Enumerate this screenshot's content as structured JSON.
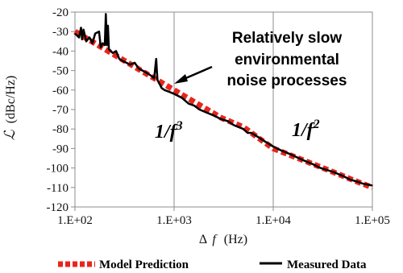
{
  "chart_data": {
    "type": "line",
    "xscale": "log",
    "xlim": [
      100,
      100000
    ],
    "ylim": [
      -120,
      -20
    ],
    "x_ticks": [
      100,
      1000,
      10000,
      100000
    ],
    "x_tick_labels": [
      "1.E+02",
      "1.E+03",
      "1.E+04",
      "1.E+05"
    ],
    "y_ticks": [
      -20,
      -30,
      -40,
      -50,
      -60,
      -70,
      -80,
      -90,
      -100,
      -110,
      -120
    ],
    "y_tick_labels": [
      "-20",
      "-30",
      "-40",
      "-50",
      "-60",
      "-70",
      "-80",
      "-90",
      "-100",
      "-110",
      "-120"
    ],
    "xlabel_prefix": "Δ",
    "xlabel_var": "f",
    "xlabel_unit": "(Hz)",
    "ylabel_symbol": "ℒ",
    "ylabel_unit": "(dBc/Hz)",
    "grid": "vertical",
    "series": [
      {
        "name": "Model Prediction",
        "style": "dashed",
        "color": "#e8251c",
        "x": [
          100,
          150,
          200,
          300,
          500,
          700,
          1000,
          1500,
          2000,
          3000,
          5000,
          7000,
          10000,
          15000,
          20000,
          30000,
          50000,
          70000,
          100000
        ],
        "y": [
          -30,
          -35.3,
          -39,
          -44.3,
          -51,
          -55.3,
          -60,
          -65.3,
          -69,
          -74.3,
          -79,
          -84.4,
          -90,
          -93.5,
          -96,
          -99.5,
          -104,
          -107,
          -110
        ]
      },
      {
        "name": "Measured Data",
        "style": "solid",
        "color": "#000000",
        "x": [
          100,
          110,
          115,
          118,
          122,
          130,
          140,
          150,
          160,
          175,
          182,
          190,
          200,
          205,
          210,
          215,
          220,
          240,
          260,
          280,
          300,
          330,
          360,
          400,
          440,
          480,
          520,
          560,
          600,
          630,
          650,
          660,
          670,
          680,
          700,
          750,
          800,
          900,
          1000,
          1100,
          1200,
          1400,
          1600,
          1800,
          2000,
          2500,
          3000,
          3500,
          4000,
          5000,
          5500,
          6000,
          7000,
          8000,
          10000,
          12000,
          15000,
          20000,
          25000,
          30000,
          40000,
          50000,
          60000,
          70000,
          80000,
          100000
        ],
        "y": [
          -31,
          -33,
          -28,
          -34,
          -29,
          -35,
          -33,
          -36,
          -31,
          -30,
          -38,
          -36,
          -37,
          -21,
          -37,
          -27,
          -39,
          -41,
          -40,
          -44,
          -45,
          -46,
          -47,
          -46,
          -49,
          -50,
          -51,
          -52,
          -53,
          -54,
          -47,
          -44,
          -50,
          -55,
          -56,
          -59,
          -60,
          -61,
          -62,
          -63,
          -64,
          -67,
          -68,
          -70,
          -71,
          -73,
          -75,
          -76,
          -78,
          -80,
          -82,
          -82,
          -84,
          -86,
          -89,
          -91,
          -93,
          -96,
          -98,
          -100,
          -102,
          -104,
          -106,
          -107,
          -108,
          -109
        ]
      }
    ],
    "annotations": {
      "line1": "Relatively slow",
      "line2": "environmental",
      "line3": "noise processes",
      "slope_left_base": "1/f",
      "slope_left_exp": "3",
      "slope_right_base": "1/f",
      "slope_right_exp": "2"
    },
    "legend": {
      "position": "bottom",
      "items": [
        "Model Prediction",
        "Measured Data"
      ]
    },
    "colors": {
      "model": "#e8251c",
      "measured": "#000000",
      "grid": "#8c8c8c",
      "axis": "#8c8c8c"
    }
  }
}
